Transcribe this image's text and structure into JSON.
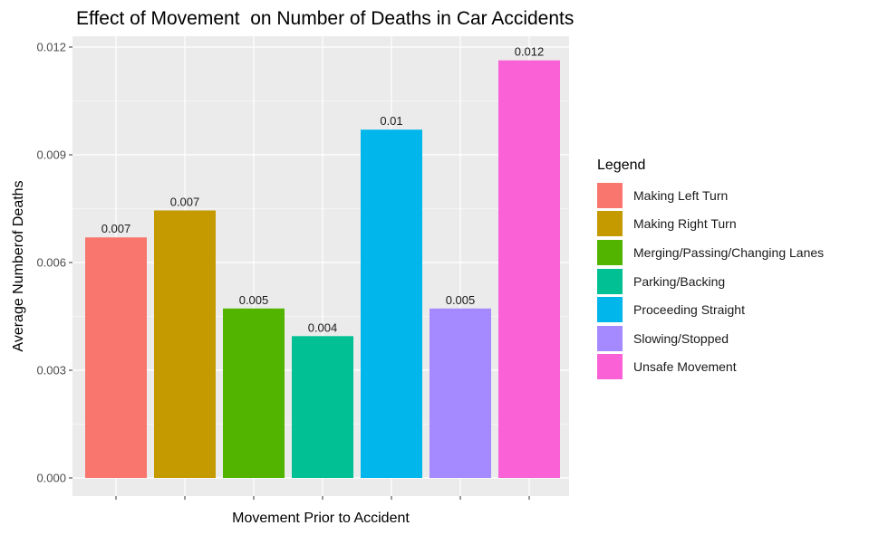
{
  "chart_data": {
    "type": "bar",
    "title": "Effect of Movement  on Number of Deaths in Car Accidents",
    "xlabel": "Movement Prior to Accident",
    "ylabel": "Average Numberof Deaths",
    "ylim": [
      0,
      0.012
    ],
    "yticks": [
      "0.000",
      "0.003",
      "0.006",
      "0.009",
      "0.012"
    ],
    "categories": [
      "Making Left Turn",
      "Making Right Turn",
      "Merging/Passing/Changing Lanes",
      "Parking/Backing",
      "Proceeding Straight",
      "Slowing/Stopped",
      "Unsafe Movement"
    ],
    "values": [
      0.0067,
      0.00745,
      0.00472,
      0.00395,
      0.0097,
      0.00472,
      0.01163
    ],
    "data_labels": [
      "0.007",
      "0.007",
      "0.005",
      "0.004",
      "0.01",
      "0.005",
      "0.012"
    ],
    "colors": [
      "#F8766D",
      "#C49A00",
      "#53B400",
      "#00C094",
      "#00B6EB",
      "#A58AFF",
      "#FB61D7"
    ],
    "legend_title": "Legend",
    "legend_position": "right",
    "grid": true,
    "panel_background": "#EBEBEB"
  }
}
